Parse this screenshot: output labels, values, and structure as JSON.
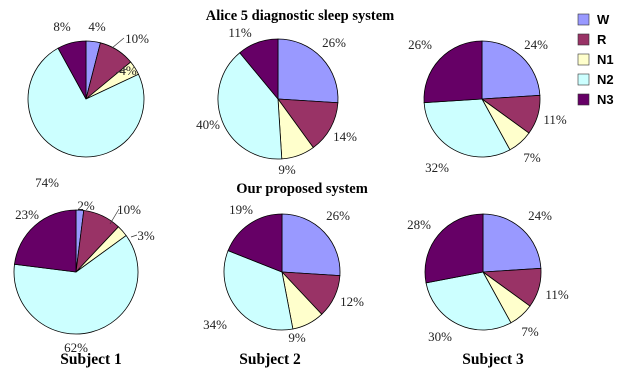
{
  "chart_data": {
    "type": "pie",
    "categories": [
      "W",
      "R",
      "N1",
      "N2",
      "N3"
    ],
    "colors": {
      "W": "#9999ff",
      "R": "#993366",
      "N1": "#ffffcc",
      "N2": "#ccffff",
      "N3": "#660066"
    },
    "legend": {
      "entries": [
        "W",
        "R",
        "N1",
        "N2",
        "N3"
      ],
      "placement": "top-right"
    },
    "groups": [
      {
        "title": "Alice 5 diagnostic sleep system",
        "charts": [
          {
            "values": [
              4,
              10,
              4,
              74,
              8
            ],
            "labels": [
              "4%",
              "10%",
              "4%",
              "74%",
              "8%"
            ]
          },
          {
            "values": [
              26,
              14,
              9,
              40,
              11
            ],
            "labels": [
              "26%",
              "14%",
              "9%",
              "40%",
              "11%"
            ]
          },
          {
            "values": [
              24,
              11,
              7,
              32,
              26
            ],
            "labels": [
              "24%",
              "11%",
              "7%",
              "32%",
              "26%"
            ]
          }
        ]
      },
      {
        "title": "Our  proposed  system",
        "charts": [
          {
            "values": [
              2,
              10,
              3,
              62,
              23
            ],
            "labels": [
              "2%",
              "10%",
              "3%",
              "62%",
              "23%"
            ]
          },
          {
            "values": [
              26,
              12,
              9,
              34,
              19
            ],
            "labels": [
              "26%",
              "12%",
              "9%",
              "34%",
              "19%"
            ]
          },
          {
            "values": [
              24,
              11,
              7,
              30,
              28
            ],
            "labels": [
              "24%",
              "11%",
              "7%",
              "30%",
              "28%"
            ]
          }
        ]
      }
    ],
    "subjects": [
      "Subject 1",
      "Subject 2",
      "Subject 3"
    ]
  }
}
